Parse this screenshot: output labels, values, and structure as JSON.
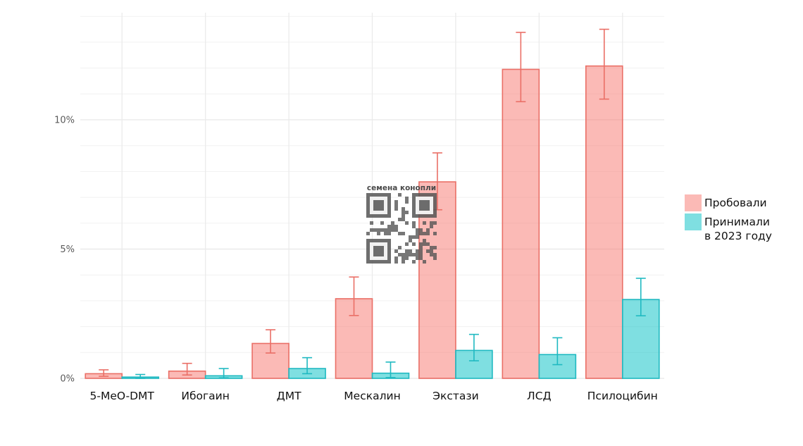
{
  "chart_data": {
    "type": "bar",
    "categories": [
      "5-MeO-DMT",
      "Ибогаин",
      "ДМТ",
      "Мескалин",
      "Экстази",
      "ЛСД",
      "Псилоцибин"
    ],
    "series": [
      {
        "name": "Пробовали",
        "values": [
          0.18,
          0.28,
          1.35,
          3.08,
          7.6,
          11.95,
          12.08
        ],
        "error_low": [
          0.08,
          0.13,
          0.98,
          2.43,
          6.52,
          10.7,
          10.8
        ],
        "error_high": [
          0.33,
          0.58,
          1.88,
          3.92,
          8.72,
          13.38,
          13.5
        ],
        "fill": "#f8766d",
        "stroke": "#ea6f66"
      },
      {
        "name": "Принимали\nв 2023 году",
        "values": [
          0.05,
          0.1,
          0.38,
          0.2,
          1.08,
          0.92,
          3.05
        ],
        "error_low": [
          0.0,
          0.02,
          0.18,
          0.03,
          0.68,
          0.53,
          2.42
        ],
        "error_high": [
          0.15,
          0.38,
          0.8,
          0.63,
          1.7,
          1.57,
          3.87
        ],
        "fill": "#00bfc4",
        "stroke": "#1fb9c1"
      }
    ],
    "yticks": [
      0,
      5,
      10
    ],
    "ytick_labels": [
      "0%",
      "5%",
      "10%"
    ],
    "ylim": [
      0,
      14
    ],
    "grid": true,
    "legend_position": "right",
    "title": "",
    "xlabel": "",
    "ylabel": ""
  },
  "watermark": {
    "label": "семена конопли",
    "icon": "qr-code-icon"
  }
}
